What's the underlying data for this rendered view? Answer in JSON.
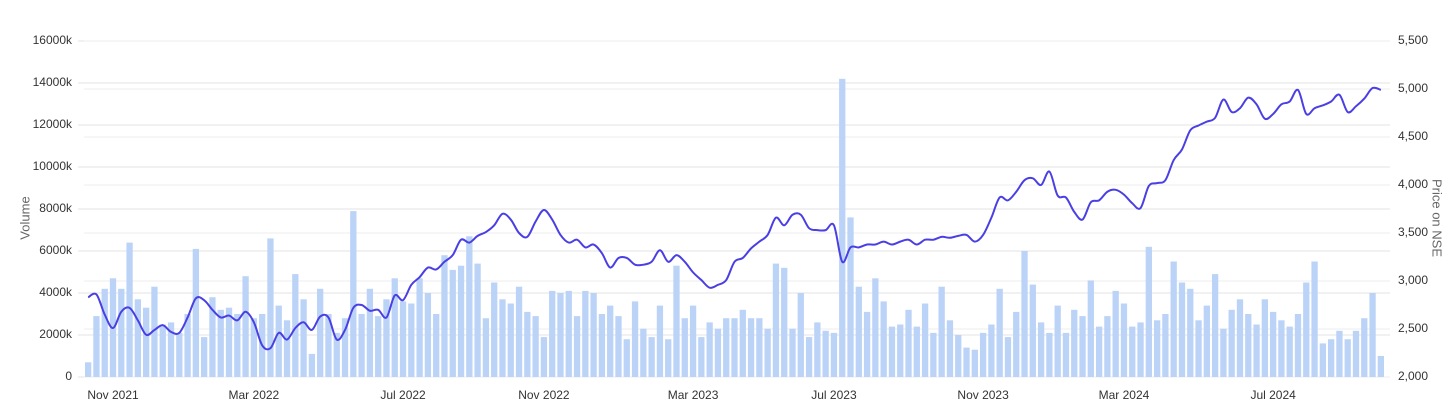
{
  "chart_data": {
    "type": "combo",
    "ylabel": "Volume",
    "y2label": "Price on NSE",
    "ylim": [
      0,
      16000
    ],
    "yticks": [
      0,
      {
        "value": 2000,
        "label": "2000k"
      },
      {
        "value": 4000,
        "label": "4000k"
      },
      {
        "value": 6000,
        "label": "6000k"
      },
      {
        "value": 8000,
        "label": "8000k"
      },
      {
        "value": 10000,
        "label": "10000k"
      },
      {
        "value": 12000,
        "label": "12000k"
      },
      {
        "value": 14000,
        "label": "14000k"
      },
      {
        "value": 16000,
        "label": "16000k"
      }
    ],
    "y2lim": [
      2000,
      5500
    ],
    "y2ticks": [
      {
        "value": 2000,
        "label": "2,000"
      },
      {
        "value": 2500,
        "label": "2,500"
      },
      {
        "value": 3000,
        "label": "3,000"
      },
      {
        "value": 3500,
        "label": "3,500"
      },
      {
        "value": 4000,
        "label": "4,000"
      },
      {
        "value": 4500,
        "label": "4,500"
      },
      {
        "value": 5000,
        "label": "5,000"
      },
      {
        "value": 5500,
        "label": "5,500"
      }
    ],
    "grid": true,
    "categories": [
      null,
      null,
      null,
      "Nov 2021",
      null,
      null,
      null,
      null,
      null,
      null,
      null,
      null,
      null,
      null,
      null,
      null,
      null,
      null,
      null,
      null,
      "Mar 2022",
      null,
      null,
      null,
      null,
      null,
      null,
      null,
      null,
      null,
      null,
      null,
      null,
      null,
      null,
      null,
      null,
      null,
      "Jul 2022",
      null,
      null,
      null,
      null,
      null,
      null,
      null,
      null,
      null,
      null,
      null,
      null,
      null,
      null,
      null,
      null,
      "Nov 2022",
      null,
      null,
      null,
      null,
      null,
      null,
      null,
      null,
      null,
      null,
      null,
      null,
      null,
      null,
      null,
      null,
      null,
      "Mar 2023",
      null,
      null,
      null,
      null,
      null,
      null,
      null,
      null,
      null,
      null,
      null,
      null,
      null,
      null,
      null,
      null,
      "Jul 2023",
      null,
      null,
      null,
      null,
      null,
      null,
      null,
      null,
      null,
      null,
      null,
      null,
      null,
      null,
      null,
      null,
      null,
      "Nov 2023",
      null,
      null,
      null,
      null,
      null,
      null,
      null,
      null,
      null,
      null,
      null,
      null,
      null,
      null,
      null,
      null,
      "Mar 2024",
      null,
      null,
      null,
      null,
      null,
      null,
      null,
      null,
      null,
      null,
      null,
      null,
      null,
      null,
      null,
      null,
      null,
      "Jul 2024",
      null,
      null,
      null,
      null,
      null,
      null,
      null,
      null,
      null,
      null,
      null,
      null,
      null
    ],
    "series": [
      {
        "type": "bar",
        "color": "#bcd3f8",
        "values": [
          700,
          2900,
          4200,
          4700,
          4200,
          6400,
          3700,
          3300,
          4300,
          2500,
          2600,
          2100,
          3000,
          6100,
          1900,
          3800,
          3200,
          3300,
          3000,
          4800,
          2800,
          3000,
          6600,
          3400,
          2700,
          4900,
          3700,
          1100,
          4200,
          3000,
          2100,
          2800,
          7900,
          3000,
          4200,
          2900,
          3700,
          4700,
          3600,
          3500,
          4700,
          4000,
          3000,
          5800,
          5100,
          5300,
          6700,
          5400,
          2800,
          4500,
          3700,
          3500,
          4300,
          3100,
          2900,
          1900,
          4100,
          4000,
          4100,
          2900,
          4100,
          4000,
          3000,
          3400,
          2900,
          1800,
          3600,
          2300,
          1900,
          3400,
          1800,
          5300,
          2800,
          3400,
          1900,
          2600,
          2300,
          2800,
          2800,
          3200,
          2800,
          2800,
          2300,
          5400,
          5200,
          2300,
          4000,
          1900,
          2600,
          2200,
          2100,
          14200,
          7600,
          4300,
          3100,
          4700,
          3600,
          2400,
          2500,
          3200,
          2400,
          3500,
          2100,
          4300,
          2700,
          2000,
          1400,
          1300,
          2100,
          2500,
          4200,
          1900,
          3100,
          6000,
          4400,
          2600,
          2100,
          3400,
          2100,
          3200,
          2900,
          4600,
          2400,
          2900,
          4100,
          3500,
          2400,
          2600,
          6200,
          2700,
          3000,
          5500,
          4500,
          4200,
          2700,
          3400,
          4900,
          2300,
          3200,
          3700,
          3000,
          2500,
          3700,
          3100,
          2700,
          2400,
          3000,
          4500,
          5500,
          1600,
          1800,
          2200,
          1800,
          2200,
          2800,
          4000,
          1000
        ]
      },
      {
        "type": "line",
        "axis": "y2",
        "color": "#4a3fe3",
        "values": [
          2830,
          2860,
          2650,
          2510,
          2680,
          2720,
          2590,
          2440,
          2490,
          2540,
          2470,
          2460,
          2620,
          2820,
          2800,
          2700,
          2620,
          2640,
          2590,
          2680,
          2570,
          2330,
          2300,
          2460,
          2390,
          2510,
          2570,
          2490,
          2630,
          2620,
          2390,
          2490,
          2720,
          2750,
          2690,
          2700,
          2620,
          2850,
          2800,
          2960,
          3040,
          3140,
          3120,
          3200,
          3270,
          3430,
          3400,
          3470,
          3510,
          3580,
          3700,
          3640,
          3500,
          3460,
          3620,
          3740,
          3640,
          3480,
          3400,
          3430,
          3350,
          3380,
          3290,
          3140,
          3240,
          3240,
          3170,
          3170,
          3200,
          3320,
          3200,
          3270,
          3200,
          3090,
          3010,
          2930,
          2960,
          3010,
          3200,
          3240,
          3340,
          3410,
          3480,
          3660,
          3580,
          3690,
          3690,
          3550,
          3530,
          3530,
          3580,
          3200,
          3350,
          3350,
          3380,
          3380,
          3410,
          3380,
          3410,
          3430,
          3380,
          3430,
          3430,
          3460,
          3450,
          3470,
          3480,
          3410,
          3480,
          3660,
          3870,
          3840,
          3930,
          4050,
          4070,
          4000,
          4140,
          3890,
          3870,
          3720,
          3640,
          3820,
          3840,
          3930,
          3950,
          3900,
          3810,
          3760,
          3990,
          4020,
          4050,
          4260,
          4370,
          4570,
          4620,
          4660,
          4700,
          4890,
          4760,
          4800,
          4910,
          4840,
          4690,
          4740,
          4840,
          4870,
          4990,
          4740,
          4800,
          4830,
          4870,
          4940,
          4760,
          4820,
          4900,
          5010,
          4990
        ]
      }
    ]
  }
}
